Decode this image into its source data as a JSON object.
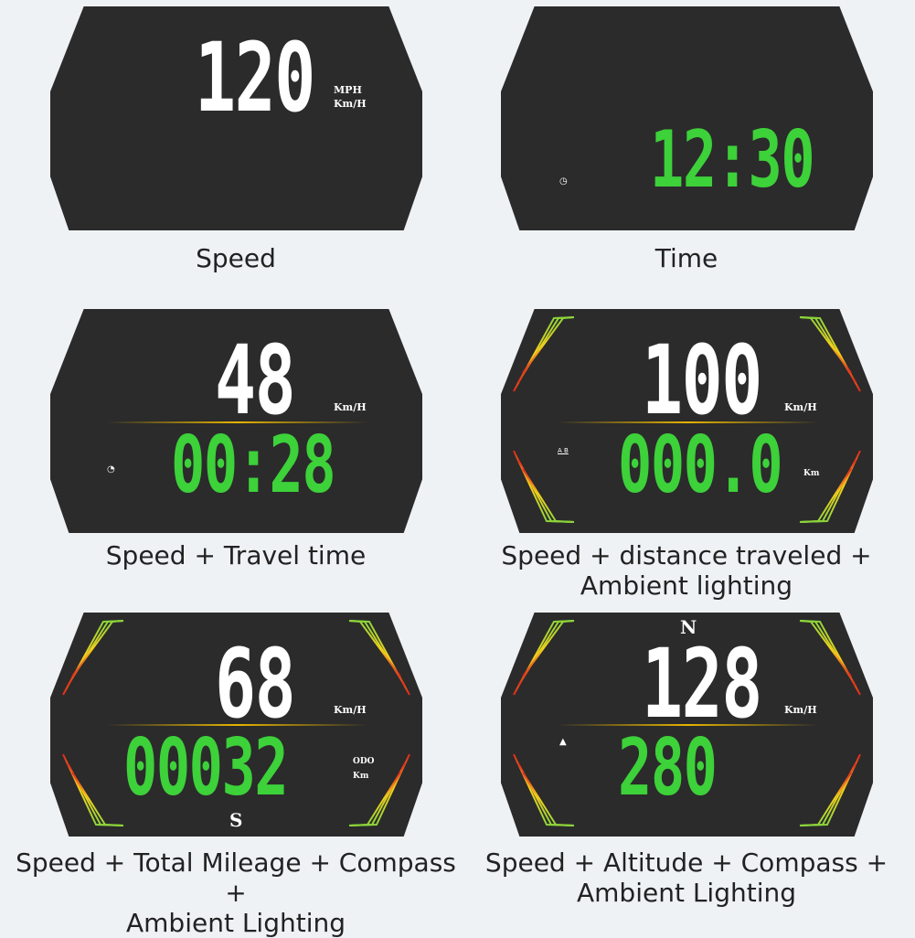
{
  "colors": {
    "panel": "#2b2b2b",
    "speed_digits": "#ffffff",
    "secondary_digits": "#3dd13a",
    "background": "#eef2f5"
  },
  "panels": [
    {
      "speed": "120",
      "units": [
        "MPH",
        "Km/H"
      ],
      "caption": "Speed"
    },
    {
      "time": "12:30",
      "icon": "clock-icon",
      "caption": "Time"
    },
    {
      "speed": "48",
      "unit": "Km/H",
      "secondary": "00:28",
      "icon": "timer-icon",
      "caption": "Speed + Travel time"
    },
    {
      "speed": "100",
      "unit": "Km/H",
      "secondary": "000.0",
      "secondary_unit": "Km",
      "icon_label": "A B",
      "caption_lines": [
        "Speed + distance traveled +",
        "Ambient lighting"
      ]
    },
    {
      "speed": "68",
      "unit": "Km/H",
      "secondary": "00032",
      "secondary_units": [
        "ODO",
        "Km"
      ],
      "compass": "S",
      "caption_lines": [
        "Speed + Total Mileage + Compass +",
        "Ambient Lighting"
      ]
    },
    {
      "speed": "128",
      "unit": "Km/H",
      "secondary": "280",
      "icon": "mountain-icon",
      "compass": "N",
      "caption_lines": [
        "Speed + Altitude + Compass +",
        "Ambient Lighting"
      ]
    }
  ]
}
